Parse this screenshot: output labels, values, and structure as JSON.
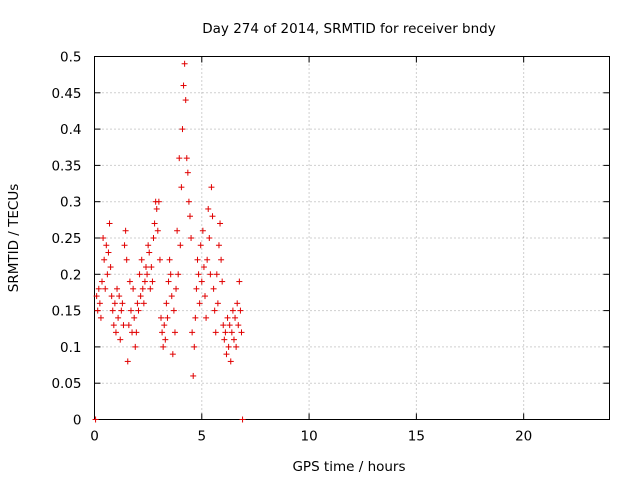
{
  "chart_data": {
    "type": "scatter",
    "title": "Day 274 of 2014, SRMTID for receiver bndy",
    "xlabel": "GPS time / hours",
    "ylabel": "SRMTID / TECUs",
    "xlim": [
      0,
      24
    ],
    "ylim": [
      0,
      0.5
    ],
    "grid": true,
    "x_ticks": [
      0,
      5,
      10,
      15,
      20
    ],
    "x_tick_labels": [
      "0",
      "5",
      "10",
      "15",
      "20"
    ],
    "y_ticks": [
      0,
      0.05,
      0.1,
      0.15,
      0.2,
      0.25,
      0.3,
      0.35,
      0.4,
      0.45,
      0.5
    ],
    "y_tick_labels": [
      "0",
      "0.05",
      "0.1",
      "0.15",
      "0.2",
      "0.25",
      "0.3",
      "0.35",
      "0.4",
      "0.45",
      "0.5"
    ],
    "marker_color": "#e00000",
    "series": [
      {
        "name": "SRMTID",
        "marker": "+",
        "points": [
          [
            0.05,
            0.0
          ],
          [
            0.1,
            0.17
          ],
          [
            0.15,
            0.15
          ],
          [
            0.2,
            0.18
          ],
          [
            0.25,
            0.16
          ],
          [
            0.3,
            0.14
          ],
          [
            0.35,
            0.19
          ],
          [
            0.4,
            0.25
          ],
          [
            0.45,
            0.22
          ],
          [
            0.5,
            0.18
          ],
          [
            0.55,
            0.24
          ],
          [
            0.6,
            0.2
          ],
          [
            0.65,
            0.23
          ],
          [
            0.7,
            0.27
          ],
          [
            0.75,
            0.21
          ],
          [
            0.8,
            0.17
          ],
          [
            0.85,
            0.15
          ],
          [
            0.9,
            0.13
          ],
          [
            0.95,
            0.16
          ],
          [
            1.0,
            0.12
          ],
          [
            1.05,
            0.18
          ],
          [
            1.1,
            0.14
          ],
          [
            1.15,
            0.17
          ],
          [
            1.2,
            0.11
          ],
          [
            1.25,
            0.15
          ],
          [
            1.3,
            0.16
          ],
          [
            1.35,
            0.13
          ],
          [
            1.4,
            0.24
          ],
          [
            1.45,
            0.26
          ],
          [
            1.5,
            0.22
          ],
          [
            1.55,
            0.08
          ],
          [
            1.6,
            0.13
          ],
          [
            1.65,
            0.19
          ],
          [
            1.7,
            0.15
          ],
          [
            1.75,
            0.12
          ],
          [
            1.8,
            0.18
          ],
          [
            1.85,
            0.14
          ],
          [
            1.9,
            0.1
          ],
          [
            1.95,
            0.12
          ],
          [
            2.0,
            0.16
          ],
          [
            2.05,
            0.15
          ],
          [
            2.1,
            0.2
          ],
          [
            2.15,
            0.17
          ],
          [
            2.2,
            0.22
          ],
          [
            2.25,
            0.18
          ],
          [
            2.3,
            0.16
          ],
          [
            2.35,
            0.19
          ],
          [
            2.4,
            0.21
          ],
          [
            2.45,
            0.2
          ],
          [
            2.5,
            0.24
          ],
          [
            2.55,
            0.23
          ],
          [
            2.6,
            0.18
          ],
          [
            2.65,
            0.21
          ],
          [
            2.7,
            0.19
          ],
          [
            2.75,
            0.25
          ],
          [
            2.8,
            0.27
          ],
          [
            2.85,
            0.3
          ],
          [
            2.9,
            0.29
          ],
          [
            2.95,
            0.26
          ],
          [
            3.0,
            0.3
          ],
          [
            3.05,
            0.22
          ],
          [
            3.1,
            0.14
          ],
          [
            3.15,
            0.12
          ],
          [
            3.2,
            0.1
          ],
          [
            3.25,
            0.13
          ],
          [
            3.3,
            0.11
          ],
          [
            3.35,
            0.16
          ],
          [
            3.4,
            0.14
          ],
          [
            3.45,
            0.19
          ],
          [
            3.5,
            0.22
          ],
          [
            3.55,
            0.2
          ],
          [
            3.6,
            0.17
          ],
          [
            3.65,
            0.09
          ],
          [
            3.7,
            0.15
          ],
          [
            3.75,
            0.12
          ],
          [
            3.8,
            0.18
          ],
          [
            3.85,
            0.26
          ],
          [
            3.9,
            0.2
          ],
          [
            3.95,
            0.36
          ],
          [
            4.0,
            0.24
          ],
          [
            4.05,
            0.32
          ],
          [
            4.1,
            0.4
          ],
          [
            4.15,
            0.46
          ],
          [
            4.2,
            0.49
          ],
          [
            4.25,
            0.44
          ],
          [
            4.3,
            0.36
          ],
          [
            4.35,
            0.34
          ],
          [
            4.4,
            0.3
          ],
          [
            4.45,
            0.28
          ],
          [
            4.5,
            0.25
          ],
          [
            4.55,
            0.12
          ],
          [
            4.6,
            0.06
          ],
          [
            4.65,
            0.1
          ],
          [
            4.7,
            0.14
          ],
          [
            4.75,
            0.18
          ],
          [
            4.8,
            0.22
          ],
          [
            4.85,
            0.2
          ],
          [
            4.9,
            0.16
          ],
          [
            4.95,
            0.24
          ],
          [
            5.0,
            0.19
          ],
          [
            5.05,
            0.26
          ],
          [
            5.1,
            0.21
          ],
          [
            5.15,
            0.17
          ],
          [
            5.2,
            0.14
          ],
          [
            5.25,
            0.22
          ],
          [
            5.3,
            0.29
          ],
          [
            5.35,
            0.25
          ],
          [
            5.4,
            0.2
          ],
          [
            5.45,
            0.32
          ],
          [
            5.5,
            0.28
          ],
          [
            5.55,
            0.18
          ],
          [
            5.6,
            0.15
          ],
          [
            5.65,
            0.12
          ],
          [
            5.7,
            0.2
          ],
          [
            5.75,
            0.16
          ],
          [
            5.8,
            0.24
          ],
          [
            5.85,
            0.27
          ],
          [
            5.9,
            0.22
          ],
          [
            5.95,
            0.19
          ],
          [
            6.0,
            0.13
          ],
          [
            6.05,
            0.11
          ],
          [
            6.1,
            0.12
          ],
          [
            6.15,
            0.09
          ],
          [
            6.2,
            0.14
          ],
          [
            6.25,
            0.1
          ],
          [
            6.3,
            0.13
          ],
          [
            6.35,
            0.08
          ],
          [
            6.4,
            0.12
          ],
          [
            6.45,
            0.15
          ],
          [
            6.5,
            0.11
          ],
          [
            6.55,
            0.14
          ],
          [
            6.6,
            0.1
          ],
          [
            6.65,
            0.16
          ],
          [
            6.7,
            0.13
          ],
          [
            6.75,
            0.19
          ],
          [
            6.8,
            0.15
          ],
          [
            6.85,
            0.12
          ],
          [
            6.9,
            0.0
          ]
        ]
      }
    ]
  }
}
